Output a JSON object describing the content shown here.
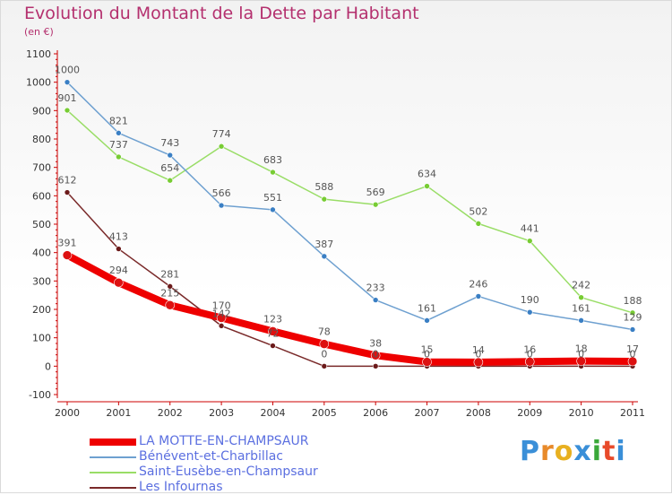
{
  "title": "Evolution du Montant de la Dette par Habitant",
  "subtitle": "(en €)",
  "logo": "Proxiti",
  "colors": {
    "title": "#b4306e",
    "axis": "#cc0000",
    "grid": "#ffffff"
  },
  "chart_data": {
    "type": "line",
    "x": [
      "2000",
      "2001",
      "2002",
      "2003",
      "2004",
      "2005",
      "2006",
      "2007",
      "2008",
      "2009",
      "2010",
      "2011"
    ],
    "ylim": [
      -100,
      1100
    ],
    "yticks": [
      -100,
      0,
      100,
      200,
      300,
      400,
      500,
      600,
      700,
      800,
      900,
      1000,
      1100
    ],
    "grid": false,
    "legend_position": "bottom",
    "series": [
      {
        "name": "LA MOTTE-EN-CHAMPSAUR",
        "color": "#ee0000",
        "marker": "#dd1111",
        "width": 8,
        "values": [
          391,
          294,
          215,
          170,
          123,
          78,
          38,
          15,
          14,
          16,
          18,
          17
        ],
        "labels": [
          "391",
          "294",
          "215",
          "170",
          "123",
          "78",
          "38",
          "15",
          "14",
          "16",
          "18",
          "17"
        ]
      },
      {
        "name": "Bénévent-et-Charbillac",
        "color": "#6ea0d0",
        "marker": "#3a7fc4",
        "width": 1.5,
        "values": [
          1000,
          821,
          743,
          566,
          551,
          387,
          233,
          161,
          246,
          190,
          161,
          129
        ],
        "labels": [
          "1000",
          "821",
          "743",
          "566",
          "551",
          "387",
          "233",
          "161",
          "246",
          "190",
          "161",
          "129"
        ]
      },
      {
        "name": "Saint-Eusèbe-en-Champsaur",
        "color": "#99dd66",
        "marker": "#77cc33",
        "width": 1.5,
        "values": [
          901,
          737,
          654,
          774,
          683,
          588,
          569,
          634,
          502,
          441,
          242,
          188
        ],
        "labels": [
          "901",
          "737",
          "654",
          "774",
          "683",
          "588",
          "569",
          "634",
          "502",
          "441",
          "242",
          "188"
        ]
      },
      {
        "name": "Les Infournas",
        "color": "#7a2a2a",
        "marker": "#6b1a1a",
        "width": 1.5,
        "values": [
          612,
          413,
          281,
          142,
          72,
          0,
          0,
          0,
          0,
          0,
          0,
          0
        ],
        "labels": [
          "612",
          "413",
          "281",
          "142",
          "72",
          "0",
          "0",
          "0",
          "0",
          "0",
          "0",
          "0"
        ]
      }
    ]
  }
}
